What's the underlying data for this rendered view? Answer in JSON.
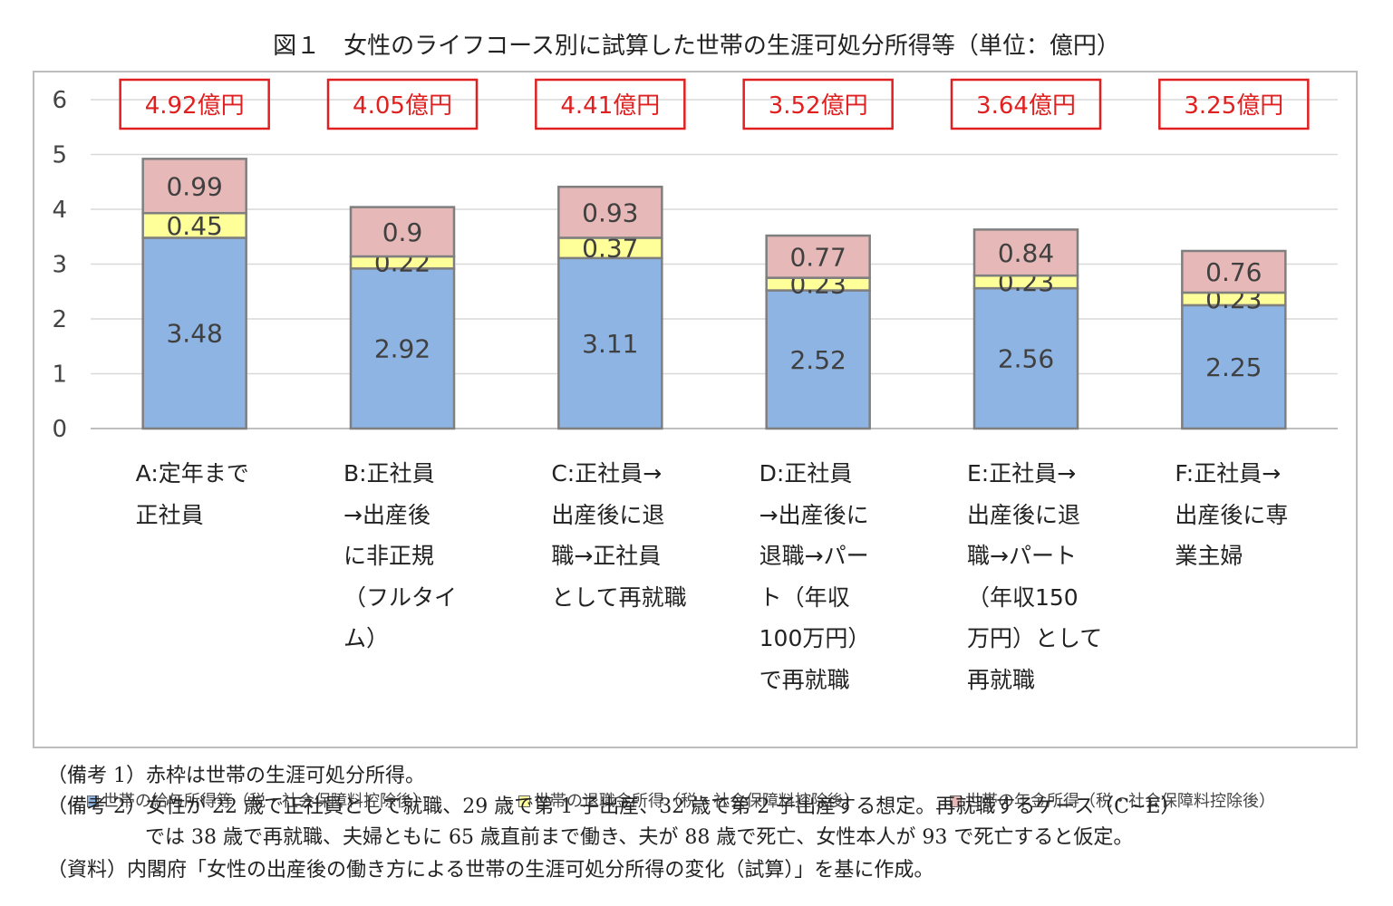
{
  "title": "図１　女性のライフコース別に試算した世帯の生涯可処分所得等（単位：億円）",
  "chart_data": {
    "type": "bar",
    "stacked": true,
    "categories": [
      "A:定年まで\n正社員",
      "B:正社員\n→出産後\nに非正規\n（フルタイ\nム）",
      "C:正社員→\n出産後に退\n職→正社員\nとして再就職",
      "D:正社員\n→出産後に\n退職→パー\nト（年収\n100万円）\nで再就職",
      "E:正社員→\n出産後に退\n職→パート\n（年収150\n万円）として\n再就職",
      "F:正社員→\n出産後に専\n業主婦"
    ],
    "series": [
      {
        "name": "世帯の給与所得等（税・社会保障料控除後）",
        "values": [
          3.48,
          2.92,
          3.11,
          2.52,
          2.56,
          2.25
        ],
        "color": "#8eb4e3"
      },
      {
        "name": "世帯の退職金所得（税・社会保障料控除後）",
        "values": [
          0.45,
          0.22,
          0.37,
          0.23,
          0.23,
          0.23
        ],
        "color": "#ffff99"
      },
      {
        "name": "世帯の年金所得（税・社会保障料控除後）",
        "values": [
          0.99,
          0.9,
          0.93,
          0.77,
          0.84,
          0.76
        ],
        "color": "#e6b9b8"
      }
    ],
    "value_labels": [
      [
        "3.48",
        "2.92",
        "3.11",
        "2.52",
        "2.56",
        "2.25"
      ],
      [
        "0.45",
        "0.22",
        "0.37",
        "0.23",
        "0.23",
        "0.23"
      ],
      [
        "0.99",
        "0.9",
        "0.93",
        "0.77",
        "0.84",
        "0.76"
      ]
    ],
    "totals": [
      4.92,
      4.05,
      4.41,
      3.52,
      3.64,
      3.25
    ],
    "total_labels": [
      "4.92億円",
      "4.05億円",
      "4.41億円",
      "3.52億円",
      "3.64億円",
      "3.25億円"
    ],
    "y_ticks": [
      "0",
      "1",
      "2",
      "3",
      "4",
      "5",
      "6"
    ],
    "ylim": [
      0,
      6
    ],
    "grid": true,
    "legend_position": "bottom",
    "total_box_color": "#e02020"
  },
  "notes": [
    "（備考 1）赤枠は世帯の生涯可処分所得。",
    "（備考 2）女性が 22 歳で正社員として就職、29 歳で第 1 子出産、32 歳で第 2 子出産する想定。再就職するケース（C~E）",
    "では 38 歳で再就職、夫婦ともに 65 歳直前まで働き、夫が 88 歳で死亡、女性本人が 93 で死亡すると仮定。",
    "（資料）内閣府「女性の出産後の働き方による世帯の生涯可処分所得の変化（試算）」を基に作成。"
  ]
}
